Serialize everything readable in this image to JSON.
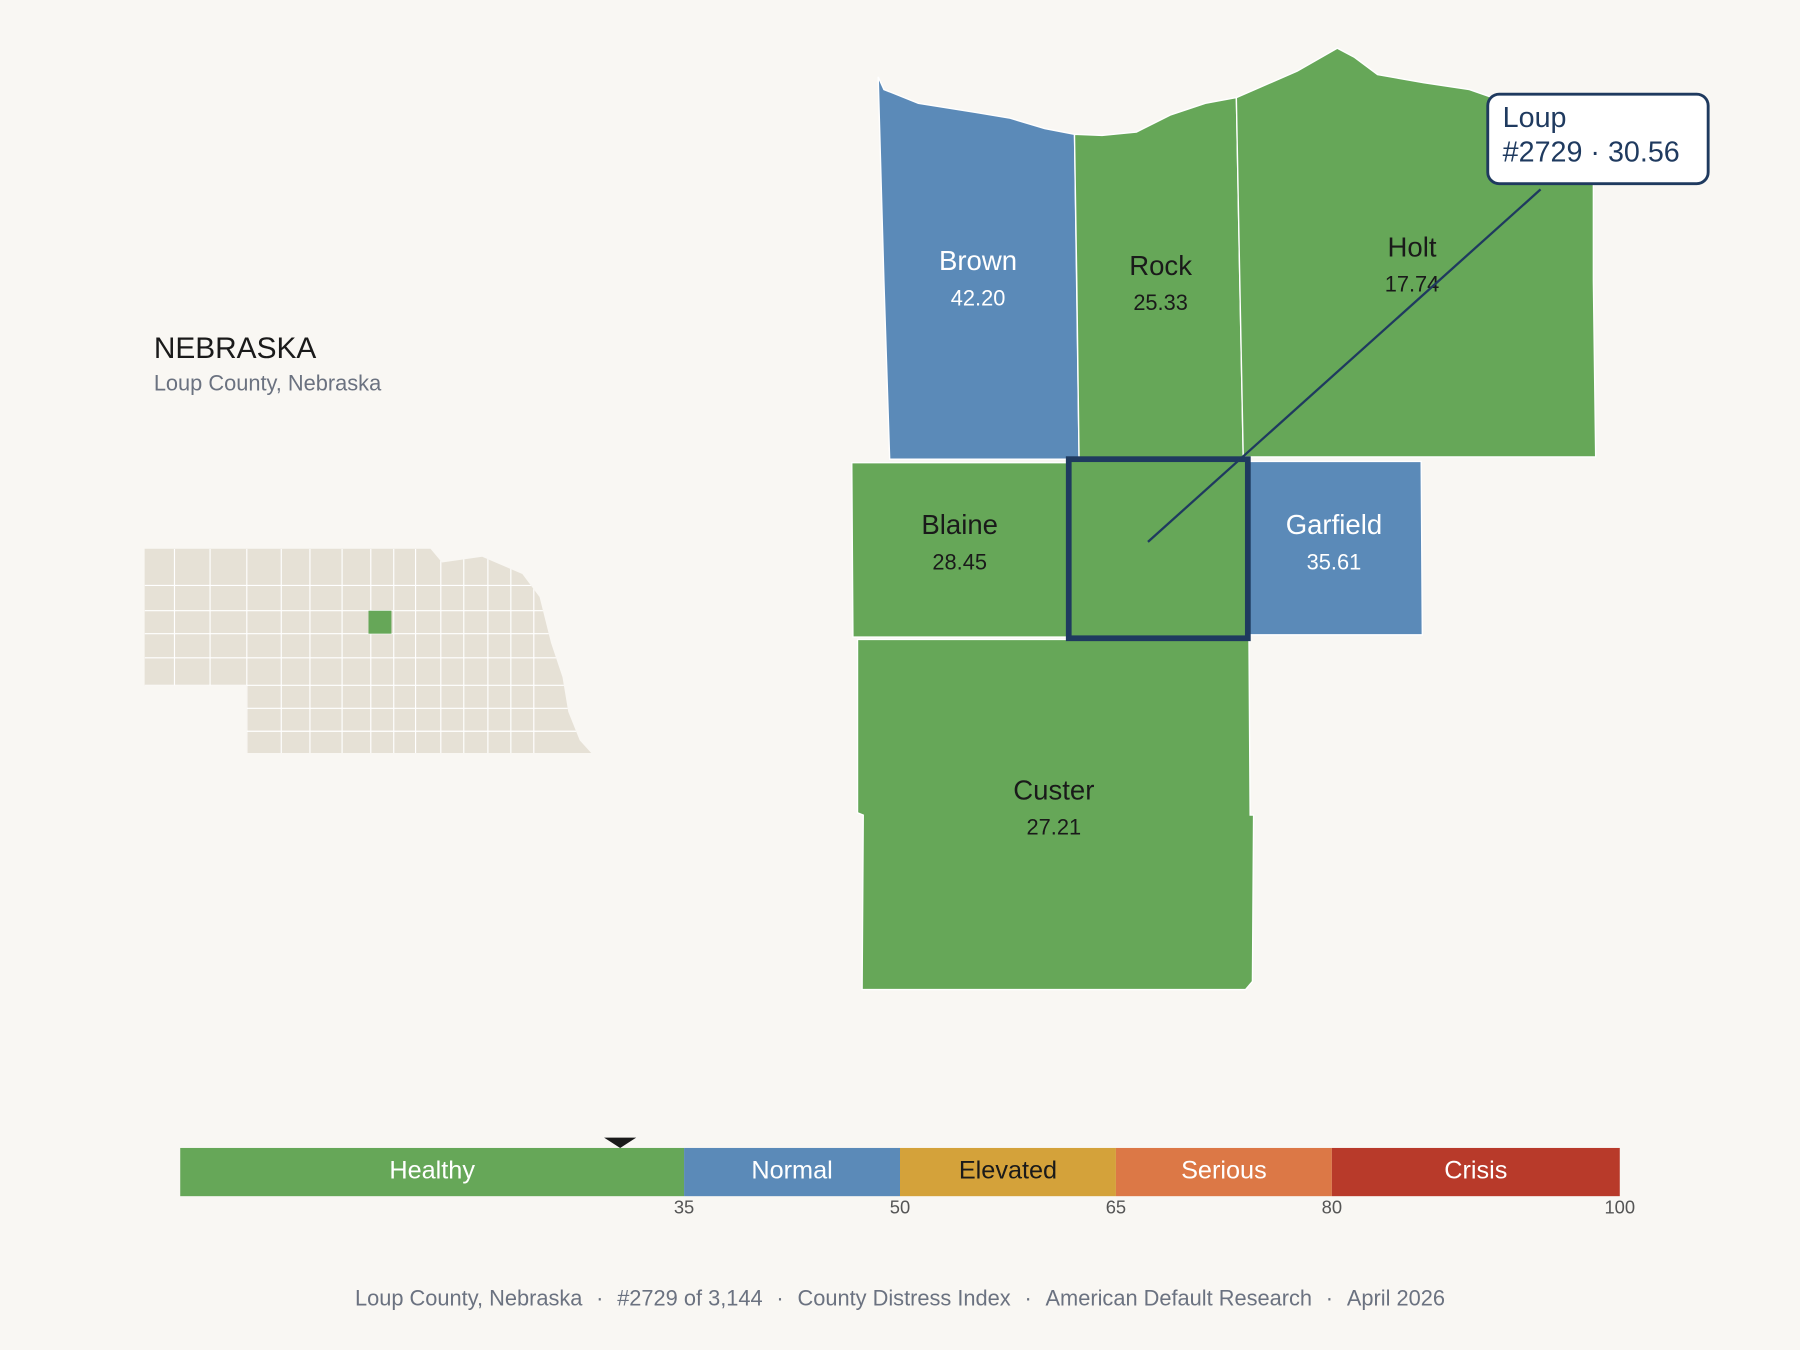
{
  "title": "NEBRASKA",
  "subtitle": "Loup County, Nebraska",
  "selected": {
    "name": "Loup",
    "label": "#2729 · 30.56",
    "value": 30.56
  },
  "counties": [
    {
      "name": "Brown",
      "value": 42.2,
      "label": "42.20"
    },
    {
      "name": "Rock",
      "value": 25.33,
      "label": "25.33"
    },
    {
      "name": "Holt",
      "value": 17.74,
      "label": "17.74"
    },
    {
      "name": "Blaine",
      "value": 28.45,
      "label": "28.45"
    },
    {
      "name": "Garfield",
      "value": 35.61,
      "label": "35.61"
    },
    {
      "name": "Custer",
      "value": 27.21,
      "label": "27.21"
    }
  ],
  "legend": {
    "xlim": [
      0,
      100
    ],
    "bands": [
      {
        "name": "Healthy",
        "from": 0,
        "to": 35,
        "color": "#66a758",
        "text_color": "#ffffff"
      },
      {
        "name": "Normal",
        "from": 35,
        "to": 50,
        "color": "#5b8ab8",
        "text_color": "#ffffff"
      },
      {
        "name": "Elevated",
        "from": 50,
        "to": 65,
        "color": "#d4a23a",
        "text_color": "#1a1a1a"
      },
      {
        "name": "Serious",
        "from": 65,
        "to": 80,
        "color": "#dc7846",
        "text_color": "#ffffff"
      },
      {
        "name": "Crisis",
        "from": 80,
        "to": 100,
        "color": "#b83a2a",
        "text_color": "#ffffff"
      }
    ],
    "ticks": [
      35,
      50,
      65,
      80,
      100
    ]
  },
  "footer": {
    "parts": [
      "Loup County, Nebraska",
      "#2729 of 3,144",
      "County Distress Index",
      "American Default Research",
      "April 2026"
    ],
    "separator": "·"
  }
}
